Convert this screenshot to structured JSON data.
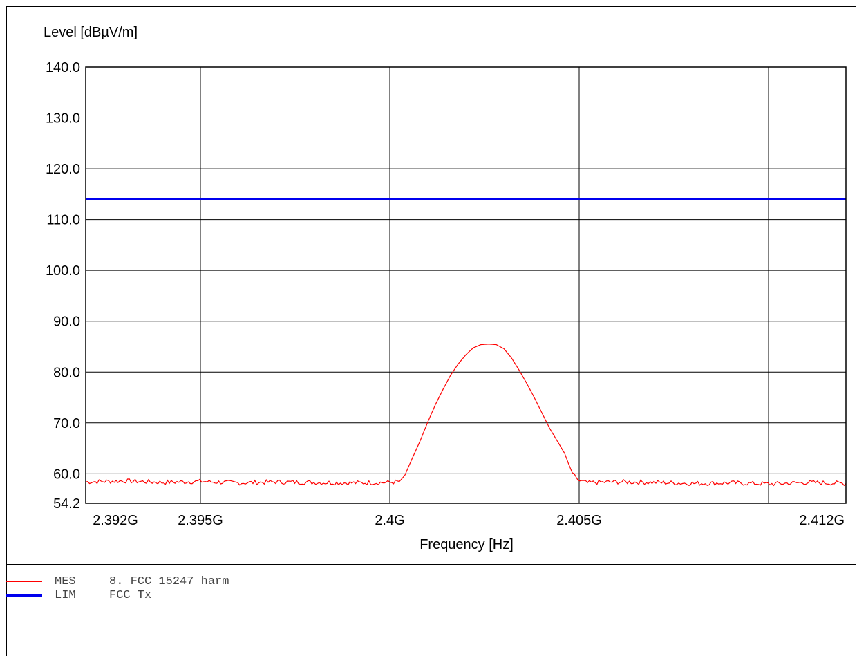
{
  "chart_data": {
    "type": "line",
    "ylabel": "Level [dBµV/m]",
    "xlabel": "Frequency [Hz]",
    "ylim": [
      54.2,
      140.0
    ],
    "y_ticks": [
      "140.0",
      "130.0",
      "120.0",
      "110.0",
      "100.0",
      "90.0",
      "80.0",
      "70.0",
      "60.0",
      "54.2"
    ],
    "x_tick_labels": [
      "2.392G",
      "2.395G",
      "2.4G",
      "2.405G",
      "2.412G"
    ],
    "grid": true,
    "series": [
      {
        "name": "MES",
        "label": "8. FCC_15247_harm",
        "color": "#ff0000",
        "x": [
          0,
          5,
          10,
          15,
          20,
          25,
          30,
          35,
          40,
          41.5,
          42,
          42.5,
          43,
          44,
          45,
          46,
          47,
          48,
          49,
          50,
          51,
          52,
          53,
          54,
          55,
          56,
          57,
          58,
          59,
          60,
          61,
          62,
          63,
          63.5,
          64,
          64.5,
          65,
          66,
          67,
          70,
          75,
          80,
          85,
          90,
          95,
          100
        ],
        "y": [
          58.4,
          58.6,
          58.3,
          58.5,
          58.2,
          58.4,
          58.3,
          58.2,
          58.3,
          58.5,
          59.8,
          61.5,
          63.2,
          66.5,
          70.2,
          73.6,
          76.6,
          79.4,
          81.6,
          83.4,
          84.8,
          85.4,
          85.5,
          85.4,
          84.6,
          82.8,
          80.4,
          77.8,
          75.0,
          72.0,
          69.0,
          66.5,
          64.0,
          62.0,
          60.2,
          59.0,
          58.6,
          58.2,
          58.3,
          58.4,
          58.3,
          58.1,
          58.2,
          58.0,
          58.3,
          58.1
        ]
      },
      {
        "name": "LIM",
        "label": "FCC_Tx",
        "color": "#0000ee",
        "x": [
          0,
          100
        ],
        "y": [
          114.0,
          114.0
        ]
      }
    ]
  },
  "legend": [
    {
      "code": "MES",
      "label": "8. FCC_15247_harm",
      "color": "#ff0000"
    },
    {
      "code": "LIM",
      "label": "FCC_Tx",
      "color": "#0000ee"
    }
  ]
}
